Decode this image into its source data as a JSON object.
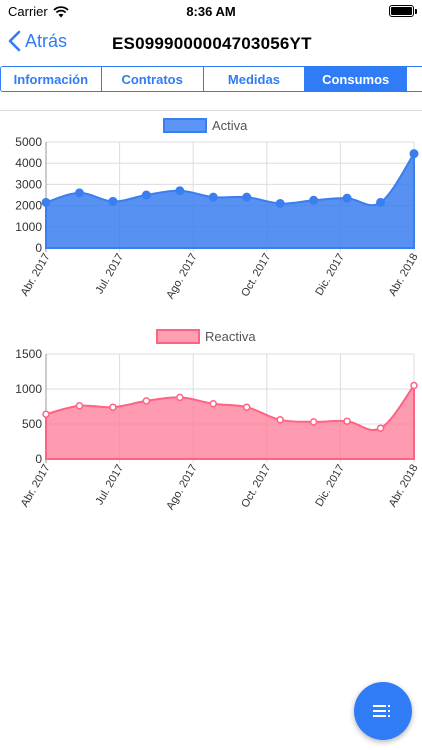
{
  "status_bar": {
    "carrier": "Carrier",
    "time": "8:36 AM"
  },
  "nav": {
    "back_label": "Atrás",
    "title": "ES0999000004703056YT"
  },
  "tabs": [
    {
      "label": "Información",
      "active": false
    },
    {
      "label": "Contratos",
      "active": false
    },
    {
      "label": "Medidas",
      "active": false
    },
    {
      "label": "Consumos",
      "active": true
    },
    {
      "label": "",
      "active": false
    }
  ],
  "colors": {
    "accent": "#2f7cf6",
    "activa": "#3a7ef0",
    "reactiva": "#ff7a95"
  },
  "chart_data": [
    {
      "type": "area",
      "series_name": "Activa",
      "x_tick_labels": [
        "Abr. 2017",
        "Jul. 2017",
        "Ago. 2017",
        "Oct. 2017",
        "Dic. 2017",
        "Abr. 2018"
      ],
      "y_ticks": [
        0,
        1000,
        2000,
        3000,
        4000,
        5000
      ],
      "ylim": [
        0,
        5000
      ],
      "values": [
        2150,
        2600,
        2200,
        2500,
        2700,
        2400,
        2400,
        2100,
        2250,
        2350,
        2150,
        4450
      ],
      "grid": true,
      "legend": "top-center"
    },
    {
      "type": "area",
      "series_name": "Reactiva",
      "x_tick_labels": [
        "Abr. 2017",
        "Jul. 2017",
        "Ago. 2017",
        "Oct. 2017",
        "Dic. 2017",
        "Abr. 2018"
      ],
      "y_ticks": [
        0,
        500,
        1000,
        1500
      ],
      "ylim": [
        0,
        1500
      ],
      "values": [
        640,
        760,
        740,
        830,
        880,
        790,
        740,
        560,
        530,
        540,
        440,
        1050
      ],
      "grid": true,
      "legend": "top-center"
    }
  ],
  "fab": {
    "icon": "list-menu-icon"
  }
}
